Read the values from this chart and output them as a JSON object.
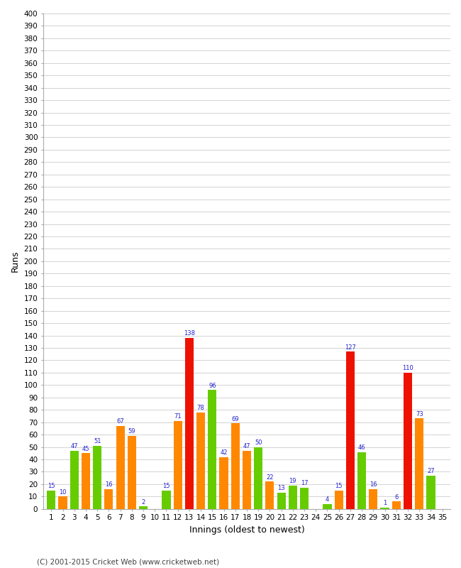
{
  "xlabel": "Innings (oldest to newest)",
  "ylabel": "Runs",
  "copyright": "(C) 2001-2015 Cricket Web (www.cricketweb.net)",
  "ylim": [
    0,
    400
  ],
  "innings": [
    1,
    2,
    3,
    4,
    5,
    6,
    7,
    8,
    9,
    10,
    11,
    12,
    13,
    14,
    15,
    16,
    17,
    18,
    19,
    20,
    21,
    22,
    23,
    24,
    25,
    26,
    27,
    28,
    29,
    30,
    31,
    32,
    33,
    34,
    35
  ],
  "values": [
    15,
    10,
    47,
    45,
    51,
    16,
    67,
    59,
    2,
    0,
    15,
    71,
    138,
    78,
    96,
    42,
    69,
    47,
    50,
    22,
    13,
    19,
    17,
    0,
    4,
    15,
    127,
    46,
    16,
    1,
    6,
    110,
    73,
    27,
    0
  ],
  "bar_colors": [
    "#66cc00",
    "#ff8800",
    "#66cc00",
    "#ff8800",
    "#66cc00",
    "#ff8800",
    "#ff8800",
    "#ff8800",
    "#66cc00",
    "#ff8800",
    "#66cc00",
    "#ff8800",
    "#ee1100",
    "#ff8800",
    "#66cc00",
    "#ff8800",
    "#ff8800",
    "#ff8800",
    "#66cc00",
    "#ff8800",
    "#66cc00",
    "#66cc00",
    "#66cc00",
    "#ff8800",
    "#66cc00",
    "#ff8800",
    "#ee1100",
    "#66cc00",
    "#ff8800",
    "#66cc00",
    "#ff8800",
    "#ee1100",
    "#ff8800",
    "#66cc00",
    "#ff8800"
  ],
  "label_color": "#2222cc",
  "background_color": "#ffffff",
  "grid_color": "#cccccc",
  "bar_width": 0.75,
  "figsize": [
    6.5,
    8.0
  ],
  "dpi": 100
}
